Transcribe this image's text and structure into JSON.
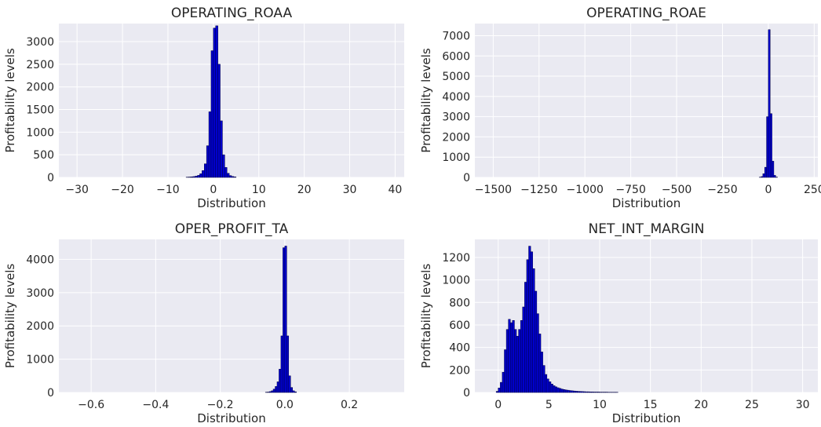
{
  "figure": {
    "background": "#ffffff",
    "plot_background": "#eaeaf2",
    "grid_color": "#ffffff",
    "bar_fill": "#0000cd",
    "bar_edge": "#000040"
  },
  "chart_data": [
    {
      "type": "bar",
      "title": "OPERATING_ROAA",
      "xlabel": "Distribution",
      "ylabel": "Profitability levels",
      "xlim": [
        -34,
        42
      ],
      "ylim": [
        0,
        3400
      ],
      "xticks": [
        -30,
        -20,
        -10,
        0,
        10,
        20,
        30,
        40
      ],
      "xtick_labels": [
        "−30",
        "−20",
        "−10",
        "0",
        "10",
        "20",
        "30",
        "40"
      ],
      "yticks": [
        0,
        500,
        1000,
        1500,
        2000,
        2500,
        3000
      ],
      "grid": true,
      "bins": {
        "x_start": -6.0,
        "width": 0.5
      },
      "values": [
        5,
        8,
        12,
        18,
        28,
        45,
        80,
        150,
        300,
        700,
        1450,
        2800,
        3300,
        3350,
        2500,
        1250,
        500,
        220,
        90,
        40,
        20,
        10
      ]
    },
    {
      "type": "bar",
      "title": "OPERATING_ROAE",
      "xlabel": "Distribution",
      "ylabel": "Profitability levels",
      "xlim": [
        -1600,
        270
      ],
      "ylim": [
        0,
        7600
      ],
      "xticks": [
        -1500,
        -1250,
        -1000,
        -750,
        -500,
        -250,
        0,
        250
      ],
      "xtick_labels": [
        "−1500",
        "−1250",
        "−1000",
        "−750",
        "−500",
        "−250",
        "0",
        "250"
      ],
      "yticks": [
        0,
        1000,
        2000,
        3000,
        4000,
        5000,
        6000,
        7000
      ],
      "grid": true,
      "bins": {
        "x_start": -50,
        "width": 10
      },
      "values": [
        10,
        40,
        180,
        500,
        3000,
        7300,
        3150,
        800,
        100,
        15
      ]
    },
    {
      "type": "bar",
      "title": "OPER_PROFIT_TA",
      "xlabel": "Distribution",
      "ylabel": "Profitability levels",
      "xlim": [
        -0.7,
        0.37
      ],
      "ylim": [
        0,
        4600
      ],
      "xticks": [
        -0.6,
        -0.4,
        -0.2,
        0.0,
        0.2
      ],
      "xtick_labels": [
        "−0.6",
        "−0.4",
        "−0.2",
        "0.0",
        "0.2"
      ],
      "yticks": [
        0,
        1000,
        2000,
        3000,
        4000
      ],
      "grid": true,
      "bins": {
        "x_start": -0.06,
        "width": 0.006
      },
      "values": [
        8,
        12,
        25,
        50,
        100,
        180,
        320,
        700,
        1700,
        4350,
        4400,
        1700,
        500,
        150,
        50,
        20
      ]
    },
    {
      "type": "bar",
      "title": "NET_INT_MARGIN",
      "xlabel": "Distribution",
      "ylabel": "Profitability levels",
      "xlim": [
        -2.3,
        31.5
      ],
      "ylim": [
        0,
        1360
      ],
      "xticks": [
        0,
        5,
        10,
        15,
        20,
        25,
        30
      ],
      "xtick_labels": [
        "0",
        "5",
        "10",
        "15",
        "20",
        "25",
        "30"
      ],
      "yticks": [
        0,
        200,
        400,
        600,
        800,
        1000,
        1200
      ],
      "grid": true,
      "bins": {
        "x_start": -0.2,
        "width": 0.2
      },
      "values": [
        10,
        40,
        90,
        180,
        380,
        560,
        650,
        620,
        640,
        560,
        500,
        560,
        640,
        760,
        980,
        1180,
        1300,
        1250,
        1100,
        900,
        700,
        520,
        360,
        240,
        160,
        120,
        95,
        75,
        60,
        50,
        42,
        36,
        30,
        26,
        22,
        20,
        17,
        15,
        13,
        11,
        10,
        9,
        8,
        7,
        6,
        6,
        5,
        5,
        4,
        4,
        4,
        3,
        3,
        3,
        3,
        2,
        2,
        2,
        2,
        2
      ]
    }
  ]
}
